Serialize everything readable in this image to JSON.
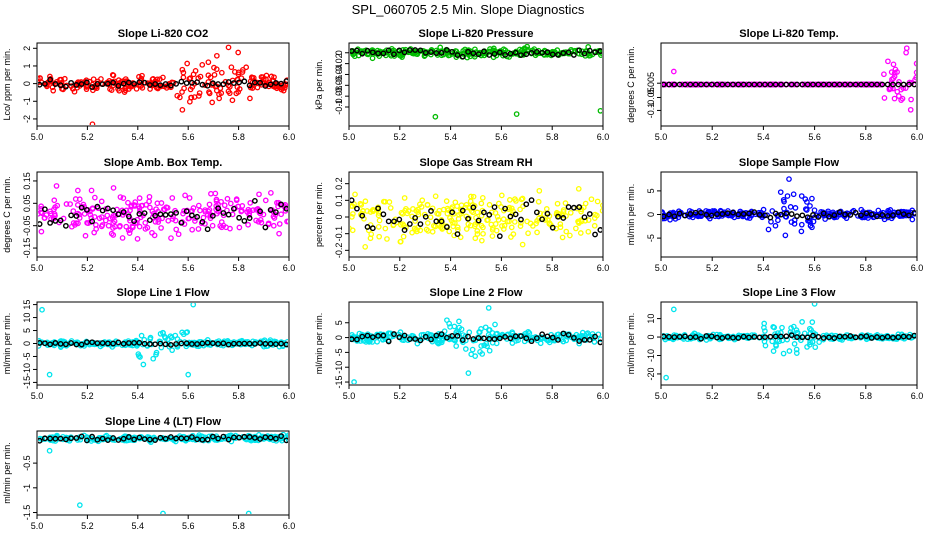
{
  "title": "SPL_060705  2.5 Min. Slope Diagnostics",
  "chart_data": [
    {
      "type": "scatter",
      "title": "Slope Li-820 CO2",
      "ylabel": "Lco/ ppm per min.",
      "color": "#ff0000",
      "xlim": [
        5.0,
        6.0
      ],
      "ylim": [
        -2.4,
        2.3
      ],
      "xticks": [
        5.0,
        5.2,
        5.4,
        5.6,
        5.8,
        6.0
      ],
      "yticks": [
        -2,
        -1,
        0,
        1,
        2
      ],
      "spread": 0.32,
      "black_spread": 0.12,
      "offset": 0,
      "burst": {
        "x0": 5.55,
        "x1": 5.85,
        "spread": 0.9
      },
      "outliers": [
        [
          5.22,
          -2.3
        ],
        [
          5.76,
          2.05
        ]
      ]
    },
    {
      "type": "scatter",
      "title": "Slope Li-820 Pressure",
      "ylabel": "kPa per min.",
      "color": "#00bb00",
      "xlim": [
        5.0,
        6.0
      ],
      "ylim": [
        -0.135,
        0.018
      ],
      "xticks": [
        5.0,
        5.2,
        5.4,
        5.6,
        5.8,
        6.0
      ],
      "yticks": [
        -0.1,
        -0.08,
        -0.06,
        -0.04,
        -0.02,
        0.0
      ],
      "spread": 0.006,
      "black_spread": 0.004,
      "offset": 0,
      "burst": null,
      "outliers": [
        [
          5.34,
          -0.118
        ],
        [
          5.66,
          -0.113
        ],
        [
          5.99,
          -0.107
        ]
      ]
    },
    {
      "type": "scatter",
      "title": "Slope Li-820 Temp.",
      "ylabel": "degrees C per min.",
      "color": "#ff00ff",
      "xlim": [
        5.0,
        6.0
      ],
      "ylim": [
        -0.16,
        0.16
      ],
      "xticks": [
        5.0,
        5.2,
        5.4,
        5.6,
        5.8,
        6.0
      ],
      "yticks": [
        -0.1,
        -0.05,
        0.005
      ],
      "spread": 0.0,
      "black_spread": 0.0,
      "offset": 0,
      "burst": {
        "x0": 5.86,
        "x1": 6.0,
        "spread": 0.08
      },
      "outliers": [
        [
          5.05,
          0.05
        ],
        [
          5.96,
          0.14
        ]
      ]
    },
    {
      "type": "scatter",
      "title": "Slope Amb. Box Temp.",
      "ylabel": "degrees C per min.",
      "color": "#ff00ff",
      "xlim": [
        5.0,
        6.0
      ],
      "ylim": [
        -0.19,
        0.19
      ],
      "xticks": [
        5.0,
        5.2,
        5.4,
        5.6,
        5.8,
        6.0
      ],
      "yticks": [
        -0.15,
        -0.05,
        0.05,
        0.15
      ],
      "spread": 0.06,
      "black_spread": 0.04,
      "offset": 0,
      "burst": null,
      "outliers": []
    },
    {
      "type": "scatter",
      "title": "Slope Gas Stream RH",
      "ylabel": "percent per min.",
      "color": "#ffff00",
      "xlim": [
        5.0,
        6.0
      ],
      "ylim": [
        -0.24,
        0.27
      ],
      "xticks": [
        5.0,
        5.2,
        5.4,
        5.6,
        5.8,
        6.0
      ],
      "yticks": [
        -0.2,
        -0.1,
        0.0,
        0.1,
        0.2
      ],
      "spread": 0.09,
      "black_spread": 0.07,
      "offset": 0,
      "burst": null,
      "outliers": []
    },
    {
      "type": "scatter",
      "title": "Slope Sample Flow",
      "ylabel": "ml/min per min.",
      "color": "#0000ff",
      "xlim": [
        5.0,
        6.0
      ],
      "ylim": [
        -9,
        9
      ],
      "xticks": [
        5.0,
        5.2,
        5.4,
        5.6,
        5.8,
        6.0
      ],
      "yticks": [
        -5,
        0,
        5
      ],
      "spread": 0.6,
      "black_spread": 0.4,
      "offset": 0,
      "burst": {
        "x0": 5.4,
        "x1": 5.6,
        "spread": 3.6
      },
      "outliers": [
        [
          5.5,
          7.5
        ]
      ]
    },
    {
      "type": "scatter",
      "title": "Slope Line 1 Flow",
      "ylabel": "ml/min per min.",
      "color": "#00e5ee",
      "xlim": [
        5.0,
        6.0
      ],
      "ylim": [
        -16,
        16
      ],
      "xticks": [
        5.0,
        5.2,
        5.4,
        5.6,
        5.8,
        6.0
      ],
      "yticks": [
        -15,
        -10,
        -5,
        0,
        5,
        10,
        15
      ],
      "spread": 0.8,
      "black_spread": 0.3,
      "offset": 0,
      "burst": {
        "x0": 5.4,
        "x1": 5.6,
        "spread": 4.5
      },
      "outliers": [
        [
          5.02,
          13
        ],
        [
          5.05,
          -12
        ],
        [
          5.6,
          -12
        ],
        [
          5.62,
          15
        ]
      ]
    },
    {
      "type": "scatter",
      "title": "Slope Line 2 Flow",
      "ylabel": "ml/min per min.",
      "color": "#00e5ee",
      "xlim": [
        5.0,
        6.0
      ],
      "ylim": [
        -16,
        12
      ],
      "xticks": [
        5.0,
        5.2,
        5.4,
        5.6,
        5.8,
        6.0
      ],
      "yticks": [
        -15,
        -10,
        -5,
        0,
        5
      ],
      "spread": 1.2,
      "black_spread": 0.9,
      "offset": 0,
      "burst": {
        "x0": 5.38,
        "x1": 5.58,
        "spread": 4.5
      },
      "outliers": [
        [
          5.02,
          -15
        ],
        [
          5.47,
          -12
        ],
        [
          5.55,
          10
        ]
      ]
    },
    {
      "type": "scatter",
      "title": "Slope Line 3 Flow",
      "ylabel": "ml/min per min.",
      "color": "#00e5ee",
      "xlim": [
        5.0,
        6.0
      ],
      "ylim": [
        -26,
        19
      ],
      "xticks": [
        5.0,
        5.2,
        5.4,
        5.6,
        5.8,
        6.0
      ],
      "yticks": [
        -20,
        -10,
        0,
        10
      ],
      "spread": 1.0,
      "black_spread": 0.6,
      "offset": 0,
      "burst": {
        "x0": 5.4,
        "x1": 5.62,
        "spread": 6.0
      },
      "outliers": [
        [
          5.02,
          -22
        ],
        [
          5.05,
          15
        ],
        [
          5.6,
          18
        ]
      ]
    },
    {
      "type": "scatter",
      "title": "Slope Line 4 (LT) Flow",
      "ylabel": "ml/min per min.",
      "color": "#00e5ee",
      "xlim": [
        5.0,
        6.0
      ],
      "ylim": [
        -1.55,
        0.15
      ],
      "xticks": [
        5.0,
        5.2,
        5.4,
        5.6,
        5.8,
        6.0
      ],
      "yticks": [
        -1.5,
        -1.0,
        -0.5
      ],
      "spread": 0.04,
      "black_spread": 0.03,
      "offset": 0,
      "burst": null,
      "outliers": [
        [
          5.05,
          -0.25
        ],
        [
          5.17,
          -1.35
        ],
        [
          5.5,
          -1.52
        ],
        [
          5.84,
          -1.52
        ]
      ]
    }
  ]
}
